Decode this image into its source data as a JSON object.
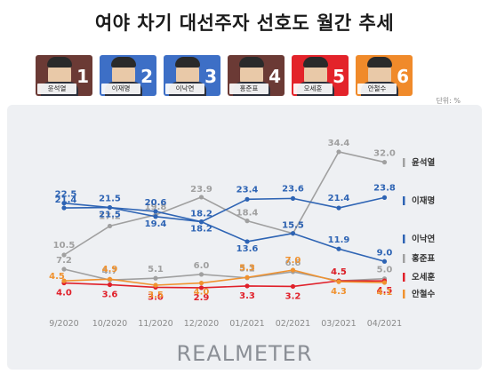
{
  "title": "여야 차기 대선주자 선호도 월간 추세",
  "unit_label": "단위: %",
  "logo_text": "REALMETER",
  "candidates": [
    {
      "rank": "1",
      "name": "윤석열",
      "color": "#6b3a35"
    },
    {
      "rank": "2",
      "name": "이재명",
      "color": "#3d6fc6"
    },
    {
      "rank": "3",
      "name": "이낙연",
      "color": "#3d6fc6"
    },
    {
      "rank": "4",
      "name": "홍준표",
      "color": "#6b3a35"
    },
    {
      "rank": "5",
      "name": "오세훈",
      "color": "#e3232a"
    },
    {
      "rank": "6",
      "name": "안철수",
      "color": "#f08a2a"
    }
  ],
  "chart_data": {
    "type": "line",
    "title": "여야 차기 대선주자 선호도 월간 추세",
    "xlabel": "",
    "ylabel": "",
    "ylim": [
      0,
      36
    ],
    "grid": false,
    "legend_position": "right",
    "categories": [
      "9/2020",
      "10/2020",
      "11/2020",
      "12/2020",
      "01/2021",
      "02/2021",
      "03/2021",
      "04/2021"
    ],
    "series": [
      {
        "name": "윤석열",
        "color": "#a0a0a0",
        "values": [
          10.5,
          17.2,
          19.8,
          23.9,
          18.4,
          15.5,
          34.4,
          32.0
        ]
      },
      {
        "name": "이재명",
        "color": "#2e64b4",
        "values": [
          21.4,
          21.5,
          19.4,
          18.2,
          23.4,
          23.6,
          21.4,
          23.8
        ]
      },
      {
        "name": "이낙연",
        "color": "#2e64b4",
        "values": [
          22.5,
          21.5,
          20.6,
          18.2,
          13.6,
          15.5,
          11.9,
          9.0
        ]
      },
      {
        "name": "홍준표",
        "color": "#a0a0a0",
        "values": [
          7.2,
          4.7,
          5.1,
          6.0,
          5.2,
          6.6,
          4.5,
          5.0
        ]
      },
      {
        "name": "오세훈",
        "color": "#e0202a",
        "values": [
          4.0,
          3.6,
          3.0,
          2.9,
          3.3,
          3.2,
          4.5,
          4.5
        ]
      },
      {
        "name": "안철수",
        "color": "#f0922f",
        "values": [
          4.5,
          4.9,
          3.5,
          4.0,
          5.3,
          7.0,
          4.3,
          4.1
        ]
      }
    ]
  }
}
